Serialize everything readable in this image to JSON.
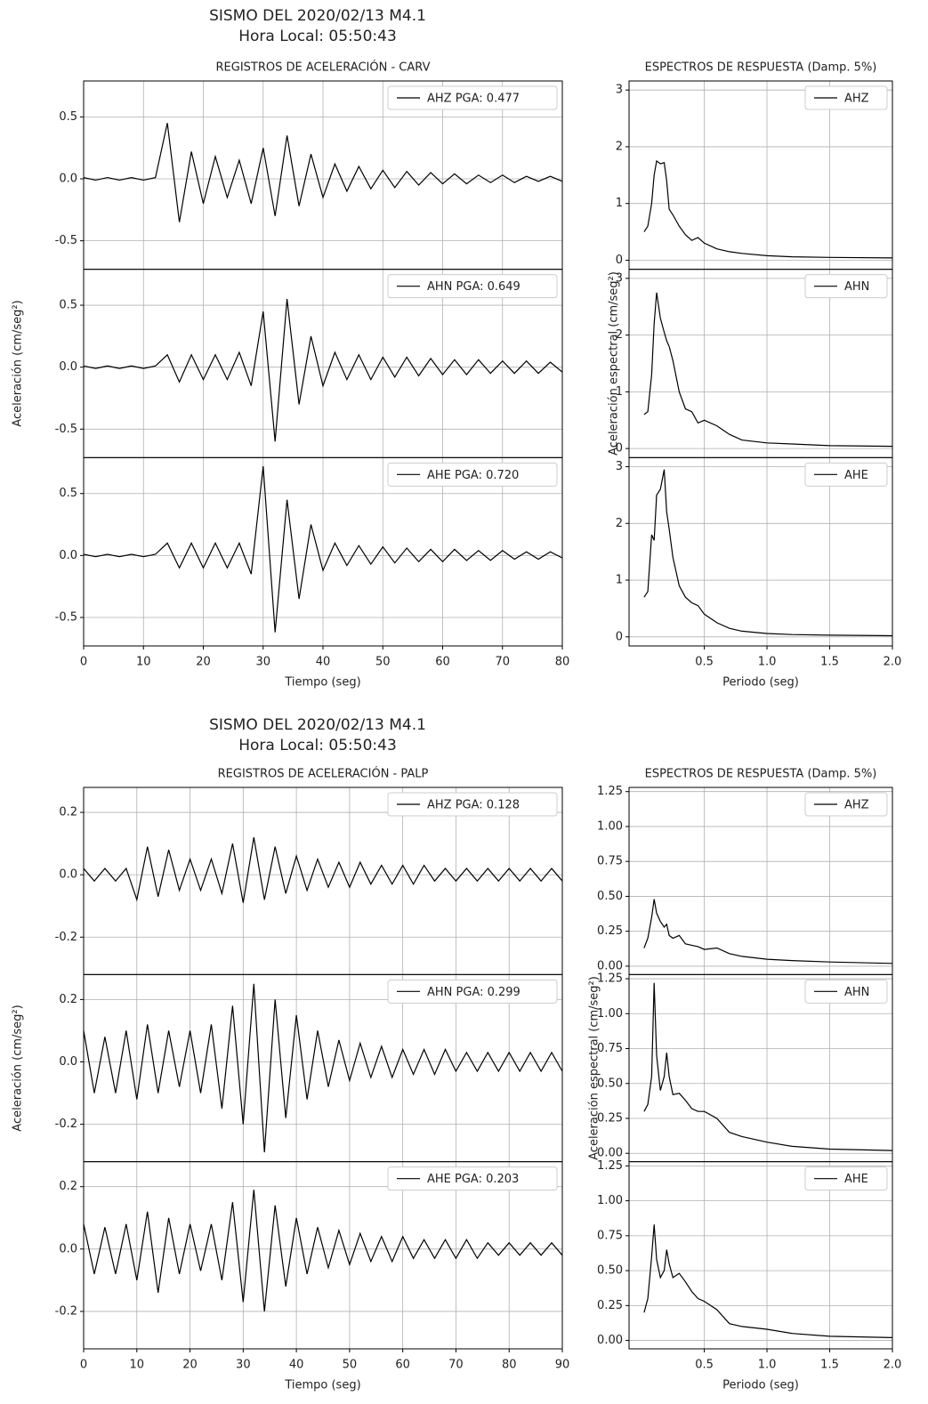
{
  "figures": [
    {
      "title": "SISMO DEL 2020/02/13 M4.1",
      "subtitle": "Hora Local: 05:50:43"
    },
    {
      "title": "SISMO DEL 2020/02/13 M4.1",
      "subtitle": "Hora Local: 05:50:43"
    }
  ],
  "chart_data": [
    {
      "type": "line",
      "title": "REGISTROS DE ACELERACIÓN - CARV",
      "xlabel": "Tiempo (seg)",
      "ylabel": "Aceleración (cm/seg²)",
      "grid": true,
      "legend": "upper right",
      "xlim": [
        0,
        80
      ],
      "xticks": [
        0,
        10,
        20,
        30,
        40,
        50,
        60,
        70,
        80
      ],
      "x": [
        0,
        2,
        4,
        6,
        8,
        10,
        12,
        14,
        16,
        18,
        20,
        22,
        24,
        26,
        28,
        30,
        32,
        34,
        36,
        38,
        40,
        42,
        44,
        46,
        48,
        50,
        52,
        54,
        56,
        58,
        60,
        62,
        64,
        66,
        68,
        70,
        72,
        74,
        76,
        78,
        80
      ],
      "panels": [
        {
          "name": "AHZ PGA: 0.477",
          "color": "#000000",
          "ylim": [
            -0.73,
            0.79
          ],
          "yticks": [
            -0.5,
            {
              "value": 0,
              "label": "0.0"
            },
            0.5
          ],
          "values": [
            0.01,
            -0.01,
            0.01,
            -0.01,
            0.01,
            -0.01,
            0.01,
            0.45,
            -0.35,
            0.22,
            -0.2,
            0.18,
            -0.15,
            0.15,
            -0.2,
            0.25,
            -0.3,
            0.35,
            -0.22,
            0.2,
            -0.15,
            0.12,
            -0.1,
            0.1,
            -0.08,
            0.07,
            -0.07,
            0.06,
            -0.05,
            0.05,
            -0.04,
            0.04,
            -0.04,
            0.03,
            -0.03,
            0.03,
            -0.03,
            0.02,
            -0.02,
            0.02,
            -0.02
          ]
        },
        {
          "name": "AHN PGA: 0.649",
          "color": "#000000",
          "ylim": [
            -0.73,
            0.79
          ],
          "yticks": [
            -0.5,
            {
              "value": 0,
              "label": "0.0"
            },
            0.5
          ],
          "values": [
            0.01,
            -0.01,
            0.01,
            -0.01,
            0.01,
            -0.01,
            0.01,
            0.1,
            -0.12,
            0.1,
            -0.1,
            0.1,
            -0.1,
            0.12,
            -0.15,
            0.45,
            -0.6,
            0.55,
            -0.3,
            0.25,
            -0.15,
            0.12,
            -0.1,
            0.1,
            -0.1,
            0.08,
            -0.08,
            0.08,
            -0.07,
            0.07,
            -0.06,
            0.06,
            -0.06,
            0.06,
            -0.05,
            0.05,
            -0.05,
            0.05,
            -0.05,
            0.04,
            -0.04
          ]
        },
        {
          "name": "AHE PGA: 0.720",
          "color": "#000000",
          "ylim": [
            -0.73,
            0.79
          ],
          "yticks": [
            -0.5,
            {
              "value": 0,
              "label": "0.0"
            },
            0.5
          ],
          "values": [
            0.01,
            -0.01,
            0.01,
            -0.01,
            0.01,
            -0.01,
            0.01,
            0.1,
            -0.1,
            0.1,
            -0.1,
            0.1,
            -0.1,
            0.1,
            -0.15,
            0.72,
            -0.62,
            0.45,
            -0.35,
            0.25,
            -0.12,
            0.1,
            -0.08,
            0.08,
            -0.07,
            0.07,
            -0.06,
            0.06,
            -0.05,
            0.05,
            -0.05,
            0.05,
            -0.04,
            0.04,
            -0.04,
            0.04,
            -0.03,
            0.03,
            -0.03,
            0.03,
            -0.02
          ]
        }
      ]
    },
    {
      "type": "line",
      "title": "ESPECTROS DE RESPUESTA (Damp. 5%)",
      "xlabel": "Periodo (seg)",
      "ylabel": "Aceleración espectral (cm/seg²)",
      "grid": true,
      "legend": "upper right",
      "xlim": [
        -0.1,
        2.0
      ],
      "xticks": [
        0.5,
        {
          "value": 1,
          "label": "1.0"
        },
        1.5,
        {
          "value": 2,
          "label": "2.0"
        }
      ],
      "x": [
        0.02,
        0.05,
        0.08,
        0.1,
        0.12,
        0.15,
        0.18,
        0.2,
        0.22,
        0.25,
        0.3,
        0.35,
        0.4,
        0.45,
        0.5,
        0.6,
        0.7,
        0.8,
        1.0,
        1.2,
        1.5,
        2.0
      ],
      "panels": [
        {
          "name": "AHZ",
          "color": "#000000",
          "ylim": [
            -0.16,
            3.16
          ],
          "yticks": [
            0,
            1,
            2,
            3
          ],
          "values": [
            0.5,
            0.6,
            1.0,
            1.5,
            1.75,
            1.7,
            1.72,
            1.4,
            0.9,
            0.8,
            0.6,
            0.45,
            0.35,
            0.4,
            0.3,
            0.2,
            0.15,
            0.12,
            0.08,
            0.06,
            0.05,
            0.04
          ]
        },
        {
          "name": "AHN",
          "color": "#000000",
          "ylim": [
            -0.16,
            3.16
          ],
          "yticks": [
            0,
            1,
            2,
            3
          ],
          "values": [
            0.6,
            0.65,
            1.3,
            2.2,
            2.75,
            2.3,
            2.05,
            1.9,
            1.8,
            1.55,
            1.0,
            0.7,
            0.65,
            0.45,
            0.5,
            0.4,
            0.25,
            0.15,
            0.1,
            0.08,
            0.05,
            0.04
          ]
        },
        {
          "name": "AHE",
          "color": "#000000",
          "ylim": [
            -0.16,
            3.16
          ],
          "yticks": [
            0,
            1,
            2,
            3
          ],
          "values": [
            0.7,
            0.8,
            1.8,
            1.7,
            2.5,
            2.6,
            2.95,
            2.2,
            1.9,
            1.4,
            0.9,
            0.7,
            0.6,
            0.55,
            0.4,
            0.25,
            0.15,
            0.1,
            0.06,
            0.04,
            0.03,
            0.02
          ]
        }
      ]
    },
    {
      "type": "line",
      "title": "REGISTROS DE ACELERACIÓN - PALP",
      "xlabel": "Tiempo (seg)",
      "ylabel": "Aceleración (cm/seg²)",
      "grid": true,
      "legend": "upper right",
      "xlim": [
        0,
        90
      ],
      "xticks": [
        0,
        10,
        20,
        30,
        40,
        50,
        60,
        70,
        80,
        90
      ],
      "x": [
        0,
        2,
        4,
        6,
        8,
        10,
        12,
        14,
        16,
        18,
        20,
        22,
        24,
        26,
        28,
        30,
        32,
        34,
        36,
        38,
        40,
        42,
        44,
        46,
        48,
        50,
        52,
        54,
        56,
        58,
        60,
        62,
        64,
        66,
        68,
        70,
        72,
        74,
        76,
        78,
        80,
        82,
        84,
        86,
        88,
        90
      ],
      "panels": [
        {
          "name": "AHZ PGA: 0.128",
          "color": "#000000",
          "ylim": [
            -0.32,
            0.28
          ],
          "yticks": [
            -0.2,
            {
              "value": 0,
              "label": "0.0"
            },
            0.2
          ],
          "values": [
            0.02,
            -0.02,
            0.02,
            -0.02,
            0.02,
            -0.08,
            0.09,
            -0.07,
            0.08,
            -0.05,
            0.05,
            -0.05,
            0.05,
            -0.06,
            0.1,
            -0.09,
            0.12,
            -0.08,
            0.09,
            -0.06,
            0.06,
            -0.05,
            0.05,
            -0.04,
            0.04,
            -0.04,
            0.04,
            -0.03,
            0.03,
            -0.03,
            0.03,
            -0.03,
            0.03,
            -0.02,
            0.02,
            -0.02,
            0.02,
            -0.02,
            0.02,
            -0.02,
            0.02,
            -0.02,
            0.02,
            -0.02,
            0.02,
            -0.02
          ]
        },
        {
          "name": "AHN PGA: 0.299",
          "color": "#000000",
          "ylim": [
            -0.32,
            0.28
          ],
          "yticks": [
            -0.2,
            {
              "value": 0,
              "label": "0.0"
            },
            0.2
          ],
          "values": [
            0.1,
            -0.1,
            0.08,
            -0.1,
            0.1,
            -0.12,
            0.12,
            -0.1,
            0.1,
            -0.08,
            0.1,
            -0.1,
            0.12,
            -0.15,
            0.18,
            -0.2,
            0.25,
            -0.29,
            0.2,
            -0.18,
            0.15,
            -0.12,
            0.1,
            -0.08,
            0.07,
            -0.06,
            0.06,
            -0.05,
            0.05,
            -0.05,
            0.04,
            -0.04,
            0.04,
            -0.04,
            0.04,
            -0.03,
            0.03,
            -0.03,
            0.03,
            -0.03,
            0.03,
            -0.03,
            0.03,
            -0.03,
            0.03,
            -0.03
          ]
        },
        {
          "name": "AHE PGA: 0.203",
          "color": "#000000",
          "ylim": [
            -0.32,
            0.28
          ],
          "yticks": [
            -0.2,
            {
              "value": 0,
              "label": "0.0"
            },
            0.2
          ],
          "values": [
            0.08,
            -0.08,
            0.07,
            -0.08,
            0.08,
            -0.1,
            0.12,
            -0.14,
            0.1,
            -0.08,
            0.08,
            -0.07,
            0.08,
            -0.1,
            0.15,
            -0.17,
            0.19,
            -0.2,
            0.14,
            -0.12,
            0.1,
            -0.08,
            0.07,
            -0.06,
            0.06,
            -0.05,
            0.05,
            -0.04,
            0.04,
            -0.04,
            0.04,
            -0.03,
            0.03,
            -0.03,
            0.03,
            -0.03,
            0.03,
            -0.03,
            0.02,
            -0.02,
            0.02,
            -0.02,
            0.02,
            -0.02,
            0.02,
            -0.02
          ]
        }
      ]
    },
    {
      "type": "line",
      "title": "ESPECTROS DE RESPUESTA (Damp. 5%)",
      "xlabel": "Periodo (seg)",
      "ylabel": "Aceleración espectral (cm/seg²)",
      "grid": true,
      "legend": "upper right",
      "xlim": [
        -0.1,
        2.0
      ],
      "xticks": [
        0.5,
        {
          "value": 1,
          "label": "1.0"
        },
        1.5,
        {
          "value": 2,
          "label": "2.0"
        }
      ],
      "x": [
        0.02,
        0.05,
        0.08,
        0.1,
        0.12,
        0.15,
        0.18,
        0.2,
        0.22,
        0.25,
        0.3,
        0.35,
        0.4,
        0.45,
        0.5,
        0.6,
        0.7,
        0.8,
        1.0,
        1.2,
        1.5,
        2.0
      ],
      "panels": [
        {
          "name": "AHZ",
          "color": "#000000",
          "ylim": [
            -0.06,
            1.28
          ],
          "yticks": [
            {
              "value": 0,
              "label": "0.00"
            },
            0.25,
            {
              "value": 0.5,
              "label": "0.50"
            },
            0.75,
            {
              "value": 1,
              "label": "1.00"
            },
            1.25
          ],
          "values": [
            0.13,
            0.2,
            0.35,
            0.48,
            0.38,
            0.32,
            0.28,
            0.3,
            0.22,
            0.2,
            0.22,
            0.16,
            0.15,
            0.14,
            0.12,
            0.13,
            0.09,
            0.07,
            0.05,
            0.04,
            0.03,
            0.02
          ]
        },
        {
          "name": "AHN",
          "color": "#000000",
          "ylim": [
            -0.06,
            1.28
          ],
          "yticks": [
            {
              "value": 0,
              "label": "0.00"
            },
            0.25,
            {
              "value": 0.5,
              "label": "0.50"
            },
            0.75,
            {
              "value": 1,
              "label": "1.00"
            },
            1.25
          ],
          "values": [
            0.3,
            0.35,
            0.55,
            1.22,
            0.7,
            0.45,
            0.55,
            0.72,
            0.55,
            0.42,
            0.43,
            0.38,
            0.32,
            0.3,
            0.3,
            0.25,
            0.15,
            0.12,
            0.08,
            0.05,
            0.03,
            0.02
          ]
        },
        {
          "name": "AHE",
          "color": "#000000",
          "ylim": [
            -0.06,
            1.28
          ],
          "yticks": [
            {
              "value": 0,
              "label": "0.00"
            },
            0.25,
            {
              "value": 0.5,
              "label": "0.50"
            },
            0.75,
            {
              "value": 1,
              "label": "1.00"
            },
            1.25
          ],
          "values": [
            0.2,
            0.3,
            0.6,
            0.83,
            0.58,
            0.45,
            0.5,
            0.65,
            0.55,
            0.45,
            0.48,
            0.42,
            0.35,
            0.3,
            0.28,
            0.22,
            0.12,
            0.1,
            0.08,
            0.05,
            0.03,
            0.02
          ]
        }
      ]
    }
  ]
}
